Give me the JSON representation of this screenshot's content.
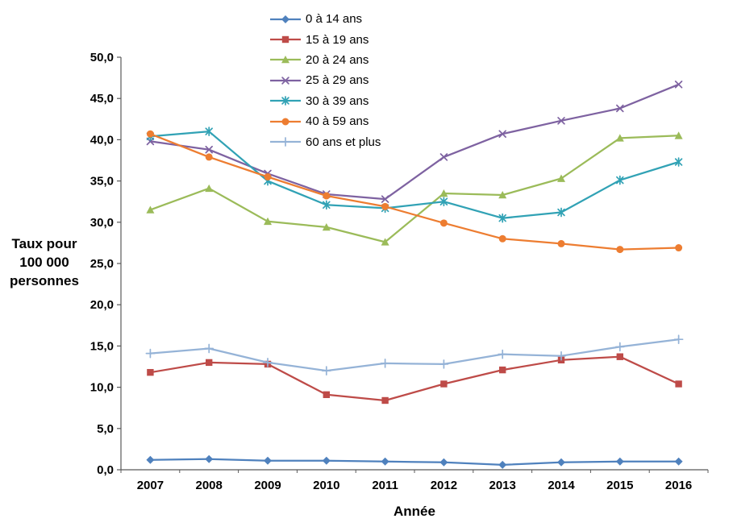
{
  "chart_data": {
    "type": "line",
    "x_categories": [
      "2007",
      "2008",
      "2009",
      "2010",
      "2011",
      "2012",
      "2013",
      "2014",
      "2015",
      "2016"
    ],
    "xlabel": "Année",
    "ylabel": "Taux pour 100 000 personnes",
    "ylabel_lines": [
      "Taux pour",
      "100 000",
      "personnes"
    ],
    "ylim": [
      0,
      50
    ],
    "ytick_step": 5,
    "ytick_labels": [
      "0,0",
      "5,0",
      "10,0",
      "15,0",
      "20,0",
      "25,0",
      "30,0",
      "35,0",
      "40,0",
      "45,0",
      "50,0"
    ],
    "grid": false,
    "legend_position": "top-center",
    "axis_color": "#595959",
    "background": "#FFFFFF",
    "series": [
      {
        "name": "0 à 14 ans",
        "marker": "diamond",
        "color": "#4F81BD",
        "values": [
          1.2,
          1.3,
          1.1,
          1.1,
          1.0,
          0.9,
          0.6,
          0.9,
          1.0,
          1.0
        ]
      },
      {
        "name": "15 à 19 ans",
        "marker": "square",
        "color": "#BE4B48",
        "values": [
          11.8,
          13.0,
          12.8,
          9.1,
          8.4,
          10.4,
          12.1,
          13.3,
          13.7,
          10.4
        ]
      },
      {
        "name": "20 à 24 ans",
        "marker": "triangle",
        "color": "#9BBB59",
        "values": [
          31.5,
          34.1,
          30.1,
          29.4,
          27.6,
          33.5,
          33.3,
          35.3,
          40.2,
          40.5
        ]
      },
      {
        "name": "25 à 29 ans",
        "marker": "x",
        "color": "#7E62A1",
        "values": [
          39.8,
          38.8,
          35.9,
          33.4,
          32.8,
          37.9,
          40.7,
          42.3,
          43.8,
          46.7
        ]
      },
      {
        "name": "30 à 39 ans",
        "marker": "asterisk",
        "color": "#31A2B5",
        "values": [
          40.4,
          41.0,
          35.0,
          32.1,
          31.7,
          32.5,
          30.5,
          31.2,
          35.1,
          37.3
        ]
      },
      {
        "name": "40 à 59 ans",
        "marker": "circle",
        "color": "#ED7D31",
        "values": [
          40.7,
          37.9,
          35.5,
          33.2,
          31.9,
          29.9,
          28.0,
          27.4,
          26.7,
          26.9
        ]
      },
      {
        "name": "60 ans et plus",
        "marker": "plus",
        "color": "#95B3D7",
        "values": [
          14.1,
          14.7,
          13.0,
          12.0,
          12.9,
          12.8,
          14.0,
          13.8,
          14.9,
          15.8
        ]
      }
    ]
  }
}
